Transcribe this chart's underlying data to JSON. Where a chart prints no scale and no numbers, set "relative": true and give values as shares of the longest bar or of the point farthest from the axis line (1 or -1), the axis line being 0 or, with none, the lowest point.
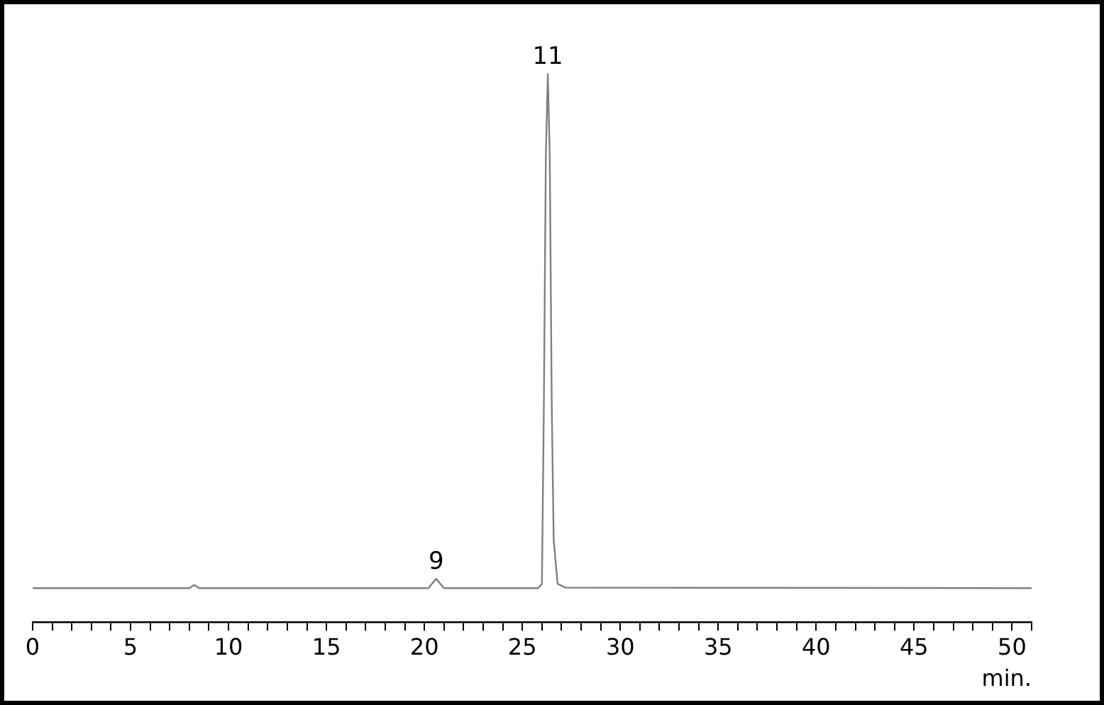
{
  "chart_data": {
    "type": "line",
    "relative": true,
    "xlabel": "min.",
    "xlim": [
      0,
      51
    ],
    "xticks": [
      0,
      {
        "value": 1,
        "label": null
      },
      {
        "value": 2,
        "label": null
      },
      {
        "value": 3,
        "label": null
      },
      {
        "value": 4,
        "label": null
      },
      5,
      {
        "value": 6,
        "label": null
      },
      {
        "value": 7,
        "label": null
      },
      {
        "value": 8,
        "label": null
      },
      {
        "value": 9,
        "label": null
      },
      10,
      {
        "value": 11,
        "label": null
      },
      {
        "value": 12,
        "label": null
      },
      {
        "value": 13,
        "label": null
      },
      {
        "value": 14,
        "label": null
      },
      15,
      {
        "value": 16,
        "label": null
      },
      {
        "value": 17,
        "label": null
      },
      {
        "value": 18,
        "label": null
      },
      {
        "value": 19,
        "label": null
      },
      20,
      {
        "value": 21,
        "label": null
      },
      {
        "value": 22,
        "label": null
      },
      {
        "value": 23,
        "label": null
      },
      {
        "value": 24,
        "label": null
      },
      25,
      {
        "value": 26,
        "label": null
      },
      {
        "value": 27,
        "label": null
      },
      {
        "value": 28,
        "label": null
      },
      {
        "value": 29,
        "label": null
      },
      30,
      {
        "value": 31,
        "label": null
      },
      {
        "value": 32,
        "label": null
      },
      {
        "value": 33,
        "label": null
      },
      {
        "value": 34,
        "label": null
      },
      35,
      {
        "value": 36,
        "label": null
      },
      {
        "value": 37,
        "label": null
      },
      {
        "value": 38,
        "label": null
      },
      {
        "value": 39,
        "label": null
      },
      40,
      {
        "value": 41,
        "label": null
      },
      {
        "value": 42,
        "label": null
      },
      {
        "value": 43,
        "label": null
      },
      {
        "value": 44,
        "label": null
      },
      45,
      {
        "value": 46,
        "label": null
      },
      {
        "value": 47,
        "label": null
      },
      {
        "value": 48,
        "label": null
      },
      {
        "value": 49,
        "label": null
      },
      50,
      {
        "value": 51,
        "label": null
      }
    ],
    "series": [
      {
        "color": "#808080",
        "x": [
          0,
          8.0,
          8.25,
          8.5,
          20.2,
          20.6,
          21.0,
          25.8,
          26.0,
          26.1,
          26.2,
          26.3,
          26.4,
          26.5,
          26.6,
          26.8,
          27.2,
          51
        ],
        "values": [
          0.062,
          0.062,
          0.068,
          0.062,
          0.062,
          0.079,
          0.062,
          0.062,
          0.07,
          0.4,
          0.85,
          1,
          0.85,
          0.4,
          0.15,
          0.07,
          0.063,
          0.062
        ]
      }
    ],
    "annotations": [
      {
        "text": "9",
        "x": 20.6,
        "y": 0.079
      },
      {
        "text": "11",
        "x": 26.3,
        "y": 1
      }
    ],
    "grid": false,
    "legend": false,
    "marker": "none",
    "line_style": "solid"
  }
}
